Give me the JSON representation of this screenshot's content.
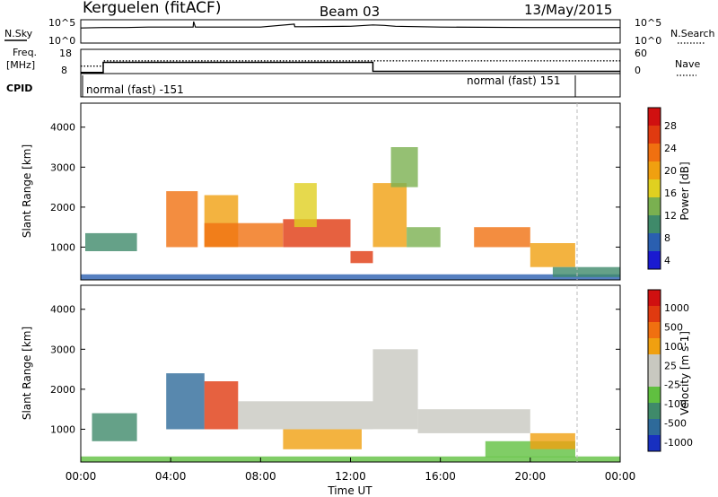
{
  "header": {
    "station": "Kerguelen (fitACF)",
    "beam": "Beam 03",
    "date": "13/May/2015"
  },
  "panels": {
    "nsky": {
      "label": "N.Sky",
      "left_ticks": [
        "10^5",
        "10^0"
      ],
      "right_label": "N.Search",
      "right_ticks": [
        "10^5",
        "10^0"
      ]
    },
    "freq": {
      "label_line1": "Freq.",
      "label_line2": "[MHz]",
      "left_ticks": [
        "18",
        "8"
      ],
      "right_label": "Nave",
      "right_ticks": [
        "60",
        "0"
      ]
    },
    "cpid": {
      "label": "CPID",
      "modes": [
        {
          "text": "normal (fast) -151",
          "start_hour": 0,
          "end_hour": 21.7
        },
        {
          "text": "normal (fast) 151",
          "start_hour": 21.7,
          "end_hour": 24
        }
      ]
    }
  },
  "x_axis": {
    "label": "Time UT",
    "ticks": [
      "00:00",
      "04:00",
      "08:00",
      "12:00",
      "16:00",
      "20:00",
      "00:00"
    ]
  },
  "chart_data": [
    {
      "type": "line",
      "name": "N.Sky / N.Search",
      "x": [
        0,
        1,
        2,
        3,
        4,
        5,
        5.02,
        5.1,
        6,
        8,
        9.5,
        9.52,
        10,
        12,
        13,
        13.5,
        14,
        16,
        20,
        24
      ],
      "y_log10": [
        3.5,
        3.6,
        3.6,
        3.7,
        3.7,
        3.7,
        5.0,
        3.7,
        3.7,
        3.7,
        4.4,
        3.8,
        3.8,
        3.9,
        4.2,
        4.1,
        3.9,
        3.7,
        3.6,
        3.6
      ],
      "ylim_log10": [
        0,
        5
      ]
    },
    {
      "type": "line",
      "name": "Freq / Nave",
      "frequency": {
        "x": [
          0,
          1,
          1,
          13,
          13,
          24
        ],
        "y": [
          8.5,
          8.5,
          13,
          13,
          9,
          9
        ],
        "ylim": [
          8,
          18
        ]
      },
      "nave": {
        "x": [
          0,
          1,
          1,
          24
        ],
        "y": [
          20,
          20,
          34,
          34
        ],
        "ylim": [
          0,
          60
        ]
      }
    },
    {
      "type": "heatmap",
      "title": "",
      "xlabel": "Time UT",
      "ylabel": "Slant Range [km]",
      "quantity": "power",
      "xlim": [
        0,
        24
      ],
      "ylim": [
        180,
        4600
      ],
      "yticks": [
        1000,
        2000,
        3000,
        4000
      ],
      "colorbar": {
        "label": "Power [dB]",
        "ticks": [
          "28",
          "24",
          "20",
          "16",
          "12",
          "8",
          "4"
        ],
        "colors": [
          "#1a1ad0",
          "#2a5fb0",
          "#3f8a6a",
          "#7ab050",
          "#e0d020",
          "#f0a010",
          "#f07010",
          "#e03a10",
          "#d01010"
        ]
      },
      "regions": [
        {
          "t0": 0,
          "t1": 24,
          "r0": 180,
          "r1": 320,
          "level": 1
        },
        {
          "t0": 0.2,
          "t1": 2.5,
          "r0": 900,
          "r1": 1350,
          "level": 2
        },
        {
          "t0": 3.8,
          "t1": 5.2,
          "r0": 1000,
          "r1": 2400,
          "level": 6
        },
        {
          "t0": 5.5,
          "t1": 7,
          "r0": 1000,
          "r1": 2300,
          "level": 5
        },
        {
          "t0": 5.5,
          "t1": 9,
          "r0": 1000,
          "r1": 1600,
          "level": 6
        },
        {
          "t0": 9,
          "t1": 12,
          "r0": 1000,
          "r1": 1700,
          "level": 7
        },
        {
          "t0": 9.5,
          "t1": 10.5,
          "r0": 1500,
          "r1": 2600,
          "level": 4
        },
        {
          "t0": 12,
          "t1": 13,
          "r0": 600,
          "r1": 900,
          "level": 7
        },
        {
          "t0": 13,
          "t1": 14.5,
          "r0": 1000,
          "r1": 2600,
          "level": 5
        },
        {
          "t0": 13.8,
          "t1": 15,
          "r0": 2500,
          "r1": 3500,
          "level": 3
        },
        {
          "t0": 14.5,
          "t1": 16,
          "r0": 1000,
          "r1": 1500,
          "level": 3
        },
        {
          "t0": 17.5,
          "t1": 20,
          "r0": 1000,
          "r1": 1500,
          "level": 6
        },
        {
          "t0": 20,
          "t1": 22,
          "r0": 500,
          "r1": 1100,
          "level": 5
        },
        {
          "t0": 21,
          "t1": 24,
          "r0": 250,
          "r1": 500,
          "level": 2
        }
      ]
    },
    {
      "type": "heatmap",
      "title": "",
      "xlabel": "Time UT",
      "ylabel": "Slant Range [km]",
      "quantity": "velocity",
      "xlim": [
        0,
        24
      ],
      "ylim": [
        180,
        4600
      ],
      "yticks": [
        1000,
        2000,
        3000,
        4000
      ],
      "colorbar": {
        "label": "Velocity [m s-1]",
        "ticks": [
          "1000",
          "500",
          "100",
          "25",
          "-25",
          "-100",
          "-500",
          "-1000"
        ],
        "colors": [
          "#1830c0",
          "#2e6a9a",
          "#3f8a6a",
          "#60c040",
          "#c8c8c0",
          "#c8c8c0",
          "#f0a010",
          "#f07010",
          "#e03a10",
          "#d01010"
        ]
      },
      "regions": [
        {
          "t0": 0,
          "t1": 24,
          "r0": 180,
          "r1": 320,
          "level": 3
        },
        {
          "t0": 0.5,
          "t1": 2.5,
          "r0": 700,
          "r1": 1400,
          "level": 2
        },
        {
          "t0": 3.8,
          "t1": 5.5,
          "r0": 1000,
          "r1": 2400,
          "level": 1
        },
        {
          "t0": 5.5,
          "t1": 7,
          "r0": 1000,
          "r1": 2200,
          "level": 8
        },
        {
          "t0": 7,
          "t1": 13,
          "r0": 1000,
          "r1": 1700,
          "level": 4
        },
        {
          "t0": 9,
          "t1": 12.5,
          "r0": 500,
          "r1": 1000,
          "level": 6
        },
        {
          "t0": 13,
          "t1": 15,
          "r0": 1000,
          "r1": 3000,
          "level": 5
        },
        {
          "t0": 15,
          "t1": 20,
          "r0": 900,
          "r1": 1500,
          "level": 4
        },
        {
          "t0": 18,
          "t1": 22,
          "r0": 300,
          "r1": 700,
          "level": 3
        },
        {
          "t0": 20,
          "t1": 22,
          "r0": 500,
          "r1": 900,
          "level": 6
        }
      ]
    }
  ]
}
